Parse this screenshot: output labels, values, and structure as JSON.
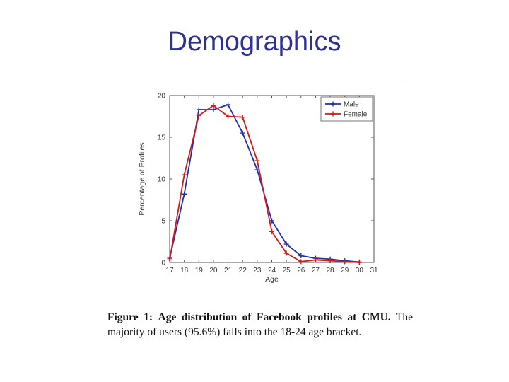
{
  "slide": {
    "title": "Demographics"
  },
  "caption": {
    "label": "Figure 1:",
    "heading": "Age distribution of Facebook profiles at CMU.",
    "body": "The majority of users (95.6%) falls into the 18-24 age bracket."
  },
  "chart_data": {
    "type": "line",
    "xlabel": "Age",
    "ylabel": "Percentage of Profiles",
    "xlim": [
      17,
      31
    ],
    "ylim": [
      0,
      20
    ],
    "x_ticks": [
      "17",
      "18",
      "19",
      "20",
      "21",
      "22",
      "23",
      "24",
      "25",
      "26",
      "27",
      "28",
      "29",
      "30",
      "31"
    ],
    "y_ticks": [
      "0",
      "5",
      "10",
      "15",
      "20"
    ],
    "legend_position": "top-right",
    "grid": false,
    "series": [
      {
        "name": "Male",
        "color": "#1f2fb0",
        "marker": "plus",
        "x": [
          17,
          18,
          19,
          20,
          21,
          22,
          23,
          24,
          25,
          26,
          27,
          28,
          29,
          30
        ],
        "y": [
          0.5,
          8.2,
          18.3,
          18.3,
          18.9,
          15.5,
          11.1,
          5.0,
          2.2,
          0.8,
          0.5,
          0.4,
          0.2,
          0.05
        ]
      },
      {
        "name": "Female",
        "color": "#d21a1a",
        "marker": "plus",
        "x": [
          17,
          18,
          19,
          20,
          21,
          22,
          23,
          24,
          25,
          26,
          27,
          28,
          29,
          30
        ],
        "y": [
          0.3,
          10.5,
          17.6,
          18.8,
          17.5,
          17.4,
          12.2,
          3.7,
          1.1,
          0.1,
          0.3,
          0.2,
          0.1,
          0.0
        ]
      }
    ]
  }
}
